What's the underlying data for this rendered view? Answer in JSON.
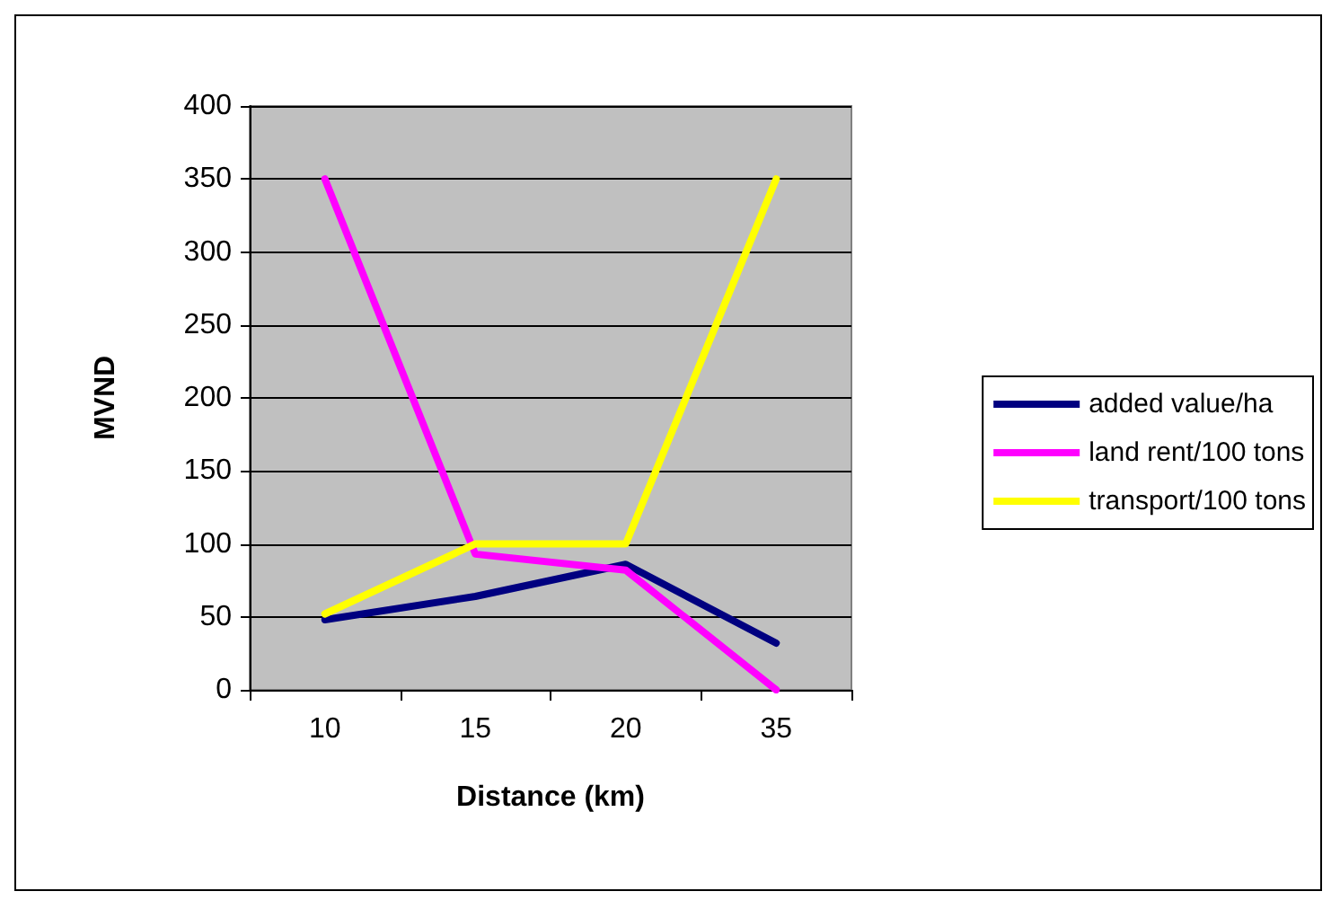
{
  "chart_data": {
    "type": "line",
    "xlabel": "Distance (km)",
    "ylabel": "MVND",
    "categories": [
      "10",
      "15",
      "20",
      "35"
    ],
    "series": [
      {
        "name": "added value/ha",
        "color": "#000080",
        "values": [
          48,
          64,
          86,
          32
        ]
      },
      {
        "name": "land rent/100 tons",
        "color": "#ff00ff",
        "values": [
          350,
          93,
          82,
          0
        ]
      },
      {
        "name": "transport/100 tons",
        "color": "#ffff00",
        "values": [
          52,
          100,
          100,
          350
        ]
      }
    ],
    "ylim": [
      0,
      400
    ],
    "yticks": [
      0,
      50,
      100,
      150,
      200,
      250,
      300,
      350,
      400
    ],
    "grid": "y",
    "legend": "right",
    "marker": "none",
    "line_style": "solid"
  }
}
